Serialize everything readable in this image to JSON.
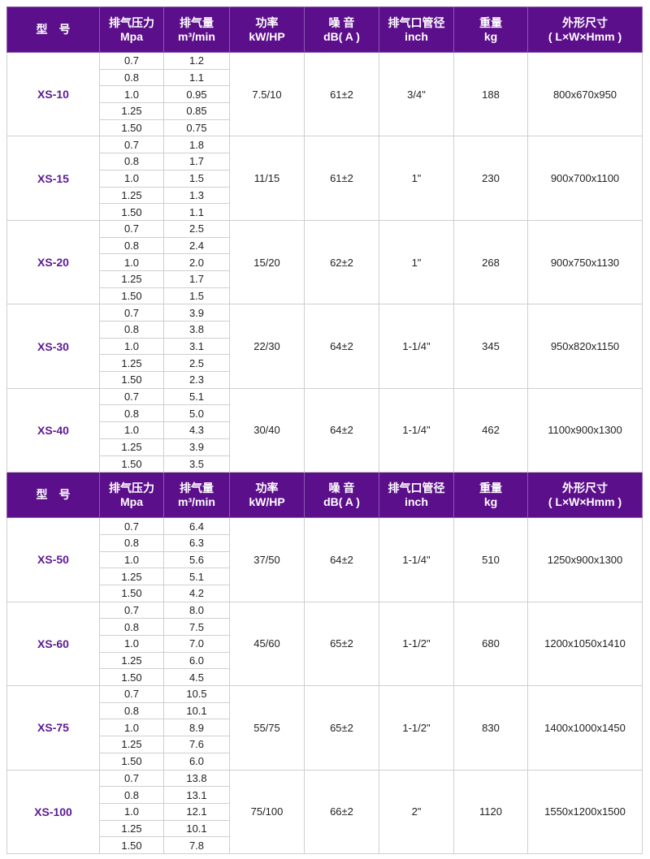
{
  "colors": {
    "header_bg": "#5c0f8b",
    "model_text": "#5c1a94"
  },
  "header": [
    "型　号",
    "排气压力\nMpa",
    "排气量\nm³/min",
    "功率\nkW/HP",
    "噪 音\ndB( A )",
    "排气口管径\ninch",
    "重量\nkg",
    "外形尺寸\n( L×W×Hmm )"
  ],
  "sections": [
    {
      "models": [
        {
          "model": "XS-10",
          "pressure": [
            "0.7",
            "0.8",
            "1.0",
            "1.25",
            "1.50"
          ],
          "flow": [
            "1.2",
            "1.1",
            "0.95",
            "0.85",
            "0.75"
          ],
          "power": "7.5/10",
          "noise": "61±2",
          "outlet": "3/4\"",
          "weight": "188",
          "size": "800x670x950"
        },
        {
          "model": "XS-15",
          "pressure": [
            "0.7",
            "0.8",
            "1.0",
            "1.25",
            "1.50"
          ],
          "flow": [
            "1.8",
            "1.7",
            "1.5",
            "1.3",
            "1.1"
          ],
          "power": "11/15",
          "noise": "61±2",
          "outlet": "1\"",
          "weight": "230",
          "size": "900x700x1100"
        },
        {
          "model": "XS-20",
          "pressure": [
            "0.7",
            "0.8",
            "1.0",
            "1.25",
            "1.50"
          ],
          "flow": [
            "2.5",
            "2.4",
            "2.0",
            "1.7",
            "1.5"
          ],
          "power": "15/20",
          "noise": "62±2",
          "outlet": "1\"",
          "weight": "268",
          "size": "900x750x1130"
        },
        {
          "model": "XS-30",
          "pressure": [
            "0.7",
            "0.8",
            "1.0",
            "1.25",
            "1.50"
          ],
          "flow": [
            "3.9",
            "3.8",
            "3.1",
            "2.5",
            "2.3"
          ],
          "power": "22/30",
          "noise": "64±2",
          "outlet": "1-1/4\"",
          "weight": "345",
          "size": "950x820x1150"
        },
        {
          "model": "XS-40",
          "pressure": [
            "0.7",
            "0.8",
            "1.0",
            "1.25",
            "1.50"
          ],
          "flow": [
            "5.1",
            "5.0",
            "4.3",
            "3.9",
            "3.5"
          ],
          "power": "30/40",
          "noise": "64±2",
          "outlet": "1-1/4\"",
          "weight": "462",
          "size": "1100x900x1300"
        }
      ]
    },
    {
      "models": [
        {
          "model": "XS-50",
          "pressure": [
            "0.7",
            "0.8",
            "1.0",
            "1.25",
            "1.50"
          ],
          "flow": [
            "6.4",
            "6.3",
            "5.6",
            "5.1",
            "4.2"
          ],
          "power": "37/50",
          "noise": "64±2",
          "outlet": "1-1/4\"",
          "weight": "510",
          "size": "1250x900x1300"
        },
        {
          "model": "XS-60",
          "pressure": [
            "0.7",
            "0.8",
            "1.0",
            "1.25",
            "1.50"
          ],
          "flow": [
            "8.0",
            "7.5",
            "7.0",
            "6.0",
            "4.5"
          ],
          "power": "45/60",
          "noise": "65±2",
          "outlet": "1-1/2\"",
          "weight": "680",
          "size": "1200x1050x1410"
        },
        {
          "model": "XS-75",
          "pressure": [
            "0.7",
            "0.8",
            "1.0",
            "1.25",
            "1.50"
          ],
          "flow": [
            "10.5",
            "10.1",
            "8.9",
            "7.6",
            "6.0"
          ],
          "power": "55/75",
          "noise": "65±2",
          "outlet": "1-1/2\"",
          "weight": "830",
          "size": "1400x1000x1450"
        },
        {
          "model": "XS-100",
          "pressure": [
            "0.7",
            "0.8",
            "1.0",
            "1.25",
            "1.50"
          ],
          "flow": [
            "13.8",
            "13.1",
            "12.1",
            "10.1",
            "7.8"
          ],
          "power": "75/100",
          "noise": "66±2",
          "outlet": "2\"",
          "weight": "1120",
          "size": "1550x1200x1500"
        }
      ]
    }
  ]
}
